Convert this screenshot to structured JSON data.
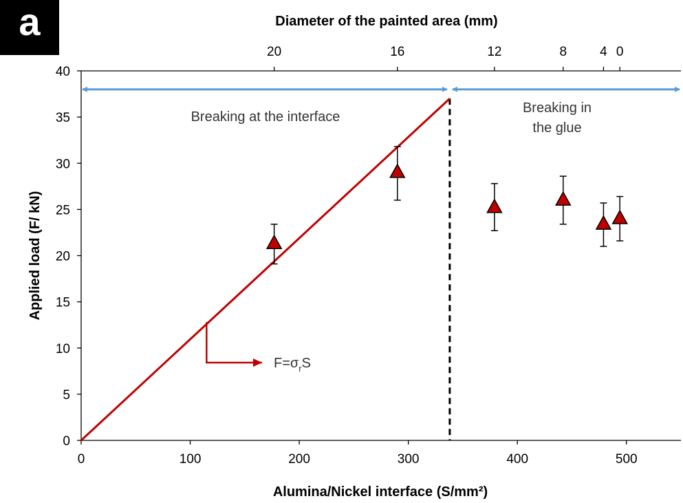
{
  "panel_label": "a",
  "chart_data": {
    "type": "scatter",
    "title": "",
    "xlabel": "Alumina/Nickel interface (S/mm²)",
    "ylabel": "Applied load (F/ kN)",
    "top_xlabel": "Diameter of the painted area (mm)",
    "xlim": [
      0,
      550
    ],
    "ylim": [
      0,
      40
    ],
    "x_ticks": [
      0,
      100,
      200,
      300,
      400,
      500
    ],
    "y_ticks": [
      0,
      5,
      10,
      15,
      20,
      25,
      30,
      35,
      40
    ],
    "top_ticks": [
      {
        "label": "20",
        "x": 177
      },
      {
        "label": "16",
        "x": 290
      },
      {
        "label": "12",
        "x": 379
      },
      {
        "label": "8",
        "x": 442
      },
      {
        "label": "4",
        "x": 479
      },
      {
        "label": "0",
        "x": 494
      }
    ],
    "series": [
      {
        "marker": "triangle",
        "color": "#C00000",
        "points": [
          {
            "x": 177,
            "y": 21.3,
            "err_low": 19.1,
            "err_high": 23.4
          },
          {
            "x": 290,
            "y": 29.0,
            "err_low": 26.0,
            "err_high": 31.8
          },
          {
            "x": 379,
            "y": 25.2,
            "err_low": 22.7,
            "err_high": 27.8
          },
          {
            "x": 442,
            "y": 26.0,
            "err_low": 23.4,
            "err_high": 28.6
          },
          {
            "x": 479,
            "y": 23.4,
            "err_low": 21.0,
            "err_high": 25.7
          },
          {
            "x": 494,
            "y": 24.0,
            "err_low": 21.6,
            "err_high": 26.4
          }
        ]
      }
    ],
    "fit_line": {
      "color": "#C00000",
      "x": [
        0,
        338
      ],
      "y": [
        0,
        37
      ]
    },
    "boundary_x": 338,
    "regions": [
      {
        "label": "Breaking at the interface",
        "x_from": 0,
        "x_to": 338,
        "arrow_y": 38
      },
      {
        "label_lines": [
          "Breaking in",
          "the glue"
        ],
        "x_from": 338,
        "x_to": 550,
        "arrow_y": 38
      }
    ],
    "arrow_color": "#5B9BD5",
    "formula": {
      "prefix": "F=σ",
      "sub": "r",
      "suffix": "S",
      "anchor_x": 115,
      "anchor_y": 12.8
    }
  }
}
